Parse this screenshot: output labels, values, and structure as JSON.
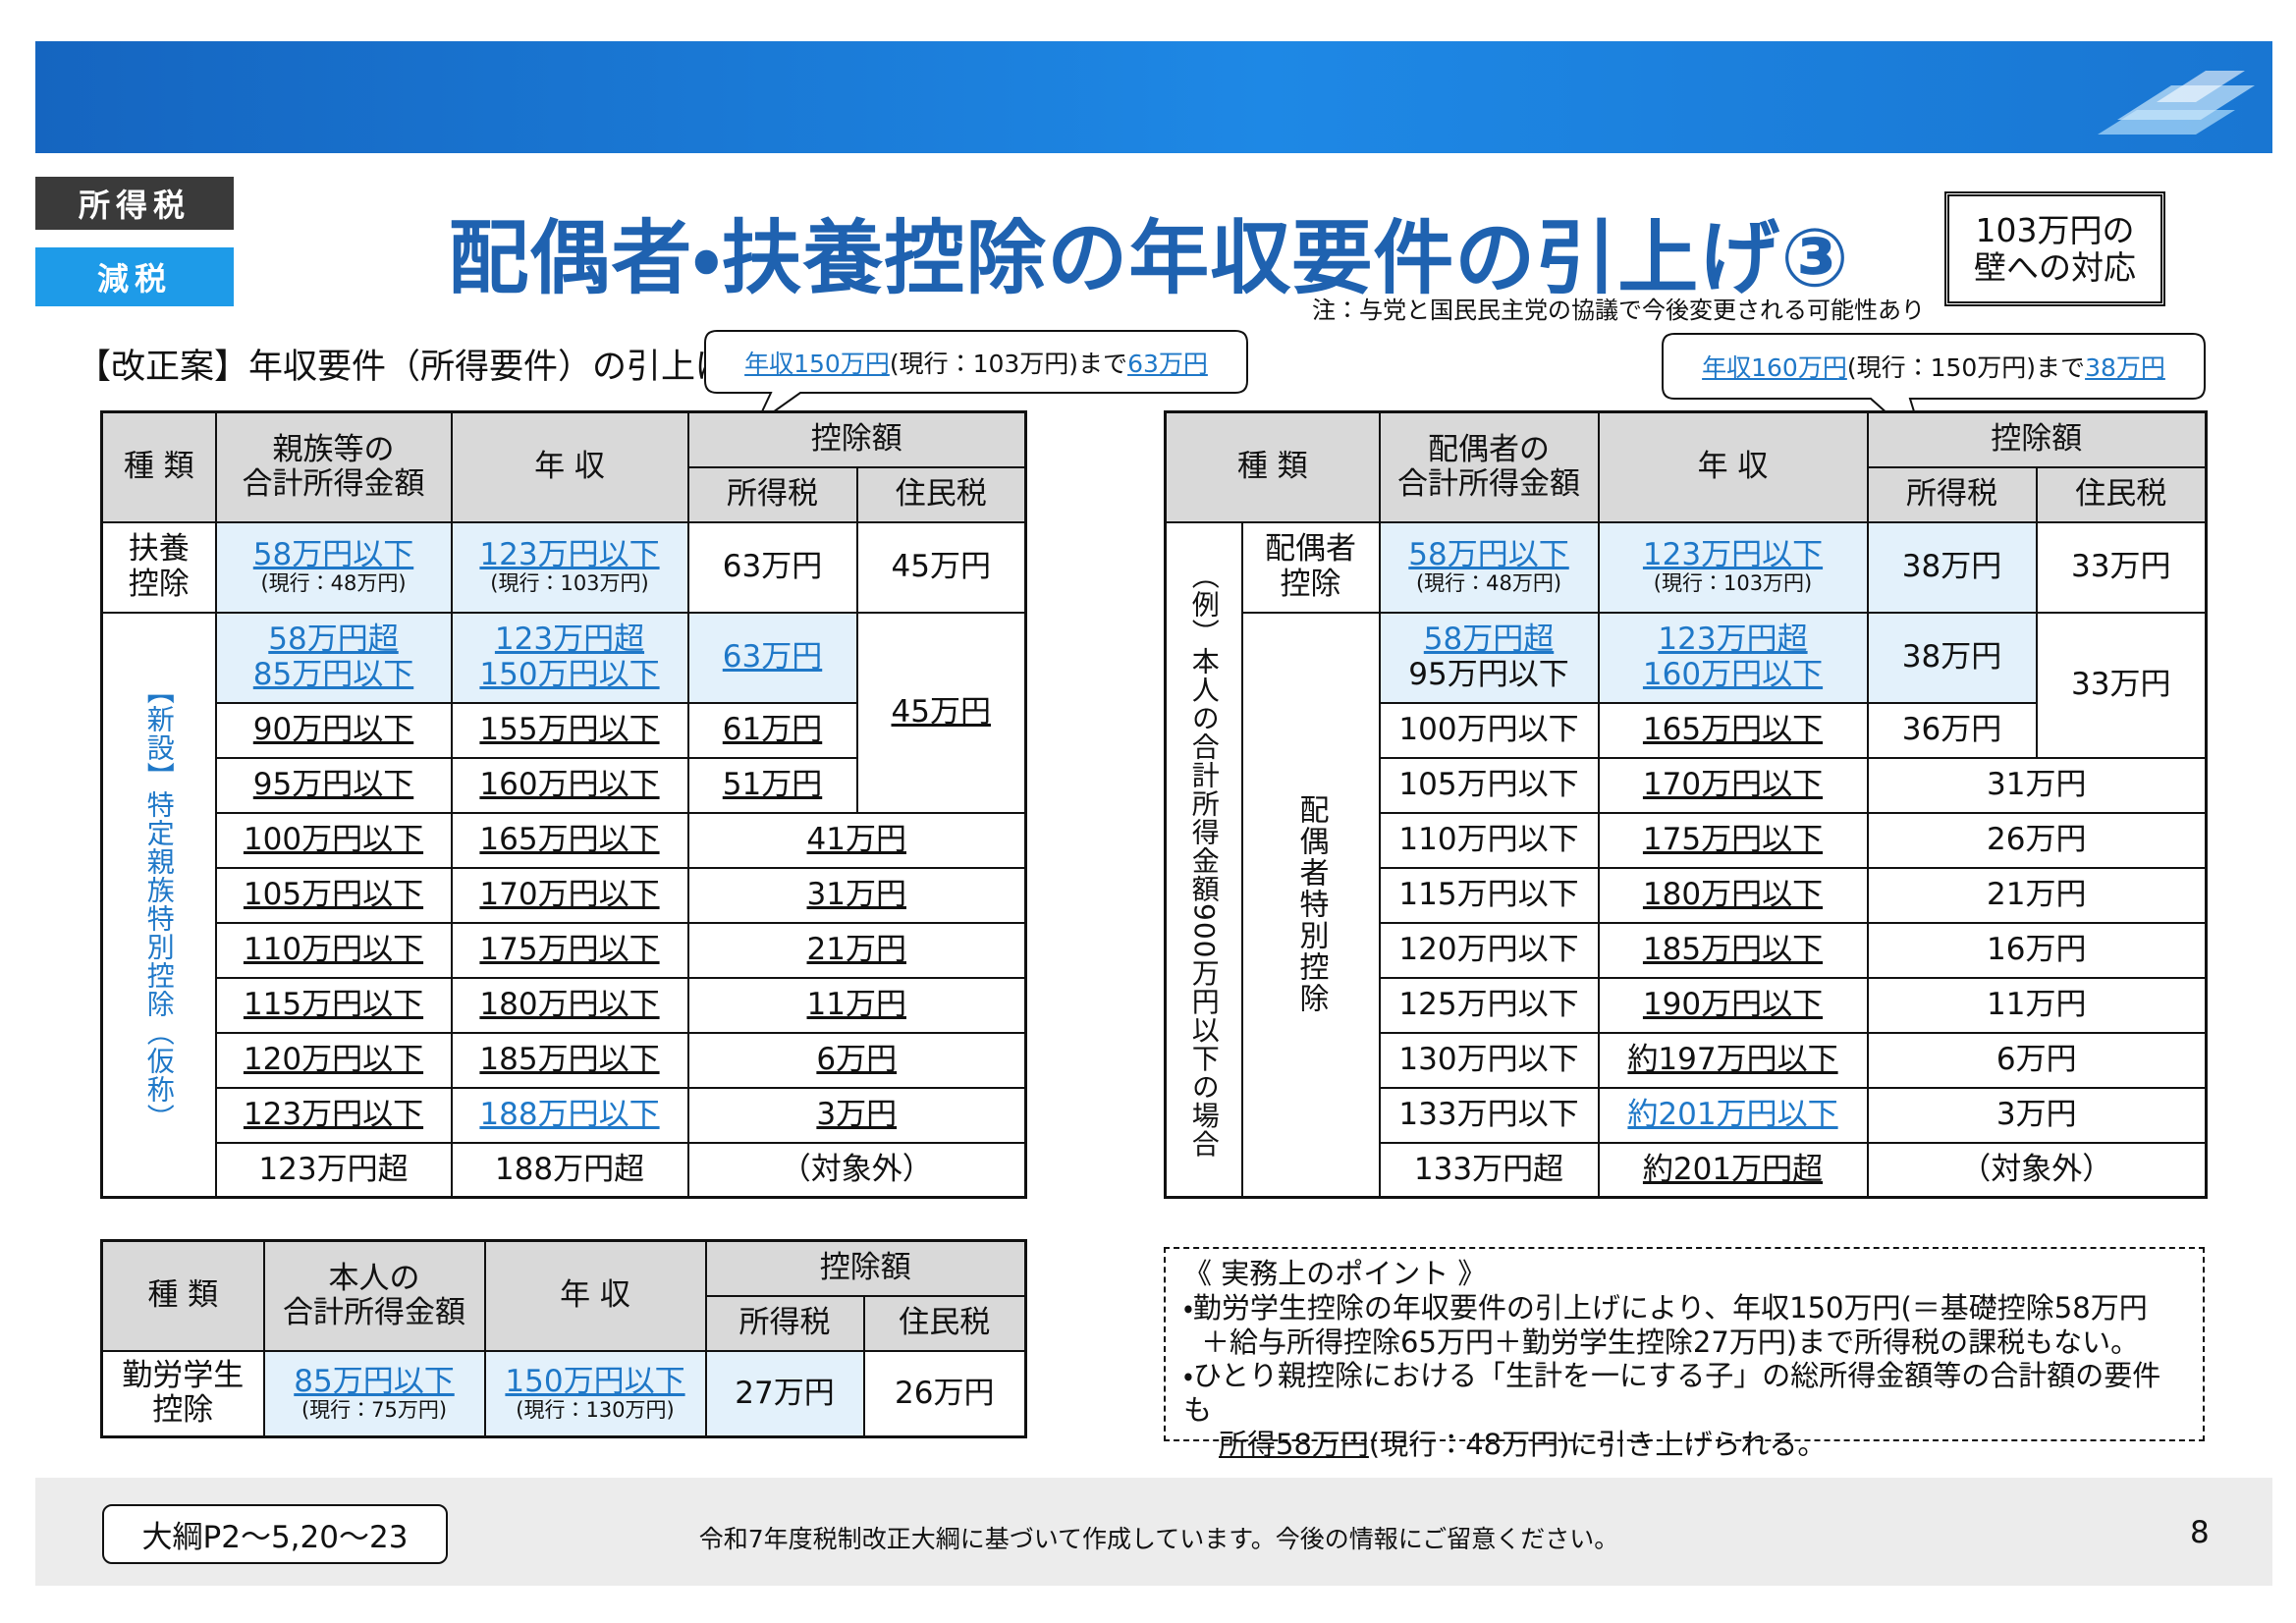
{
  "header": {
    "tags": [
      "所得税",
      "減税"
    ],
    "title": "配偶者・扶養控除の年収要件の引上げ③",
    "badge_lines": [
      "103万円の",
      "壁への対応"
    ],
    "note": "注：与党と国民民主党の協議で今後変更される可能性あり"
  },
  "section_heading": "【改正案】年収要件（所得要件）の引上げ",
  "left_callout": [
    "年収150万円",
    "(現行：103万円)まで",
    "63万円"
  ],
  "right_callout": [
    "年収160万円",
    "(現行：150万円)まで",
    "38万円"
  ],
  "left_table": {
    "header": [
      "種 類",
      [
        "親族等の",
        "合計所得金額"
      ],
      "年 収",
      "控除額",
      "所得税",
      "住民税"
    ],
    "fuyou": [
      [
        "扶養",
        "控除"
      ],
      [
        "58万円以下",
        "(現行：48万円)"
      ],
      [
        "123万円以下",
        "(現行：103万円)"
      ],
      "63万円",
      "45万円"
    ],
    "group_label": "【新設】特定親族特別控除（仮称）",
    "rows": [
      [
        [
          "58万円超",
          "85万円以下"
        ],
        [
          "123万円超",
          "150万円以下"
        ],
        "63万円",
        "45万円"
      ],
      [
        "90万円以下",
        "155万円以下",
        "61万円"
      ],
      [
        "95万円以下",
        "160万円以下",
        "51万円"
      ],
      [
        "100万円以下",
        "165万円以下",
        "41万円"
      ],
      [
        "105万円以下",
        "170万円以下",
        "31万円"
      ],
      [
        "110万円以下",
        "175万円以下",
        "21万円"
      ],
      [
        "115万円以下",
        "180万円以下",
        "11万円"
      ],
      [
        "120万円以下",
        "185万円以下",
        "6万円"
      ],
      [
        "123万円以下",
        "188万円以下",
        "3万円"
      ],
      [
        "123万円超",
        "188万円超",
        "（対象外）"
      ]
    ]
  },
  "right_table": {
    "header": [
      "種 類",
      [
        "配偶者の",
        "合計所得金額"
      ],
      "年 収",
      "控除額",
      "所得税",
      "住民税"
    ],
    "example_label": "（例）本人の合計所得金額900万円以下の場合",
    "haigusha": [
      [
        "配偶者",
        "控除"
      ],
      [
        "58万円以下",
        "(現行：48万円)"
      ],
      [
        "123万円以下",
        "(現行：103万円)"
      ],
      "38万円",
      "33万円"
    ],
    "group_label": "配偶者特別控除",
    "rows": [
      [
        [
          "58万円超",
          "95万円以下"
        ],
        [
          "123万円超",
          "160万円以下"
        ],
        "38万円",
        "33万円"
      ],
      [
        "100万円以下",
        "165万円以下",
        "36万円"
      ],
      [
        "105万円以下",
        "170万円以下",
        "31万円"
      ],
      [
        "110万円以下",
        "175万円以下",
        "26万円"
      ],
      [
        "115万円以下",
        "180万円以下",
        "21万円"
      ],
      [
        "120万円以下",
        "185万円以下",
        "16万円"
      ],
      [
        "125万円以下",
        "190万円以下",
        "11万円"
      ],
      [
        "130万円以下",
        "約197万円以下",
        "6万円"
      ],
      [
        "133万円以下",
        "約201万円以下",
        "3万円"
      ],
      [
        "133万円超",
        "約201万円超",
        "（対象外）"
      ]
    ]
  },
  "student_table": {
    "header": [
      "種 類",
      [
        "本人の",
        "合計所得金額"
      ],
      "年 収",
      "控除額",
      "所得税",
      "住民税"
    ],
    "row": [
      [
        "勤労学生",
        "控除"
      ],
      [
        "85万円以下",
        "(現行：75万円)"
      ],
      [
        "150万円以下",
        "(現行：130万円)"
      ],
      "27万円",
      "26万円"
    ]
  },
  "points": {
    "title": "《 実務上のポイント 》",
    "lines": [
      "・勤労学生控除の年収要件の引上げにより、年収150万円(＝基礎控除58万円",
      "＋給与所得控除65万円＋勤労学生控除27万円)まで所得税の課税もない。",
      "・ひとり親控除における「生計を一にする子」の総所得金額等の合計額の要件も"
    ],
    "last_line": [
      "所得58万円",
      "(現行：48万円)に引き上げられる。"
    ]
  },
  "footer": {
    "reference": "大綱P2～5,20～23",
    "notice": "令和7年度税制改正大綱に基づいて作成しています。今後の情報にご留意ください。",
    "page": "8"
  }
}
